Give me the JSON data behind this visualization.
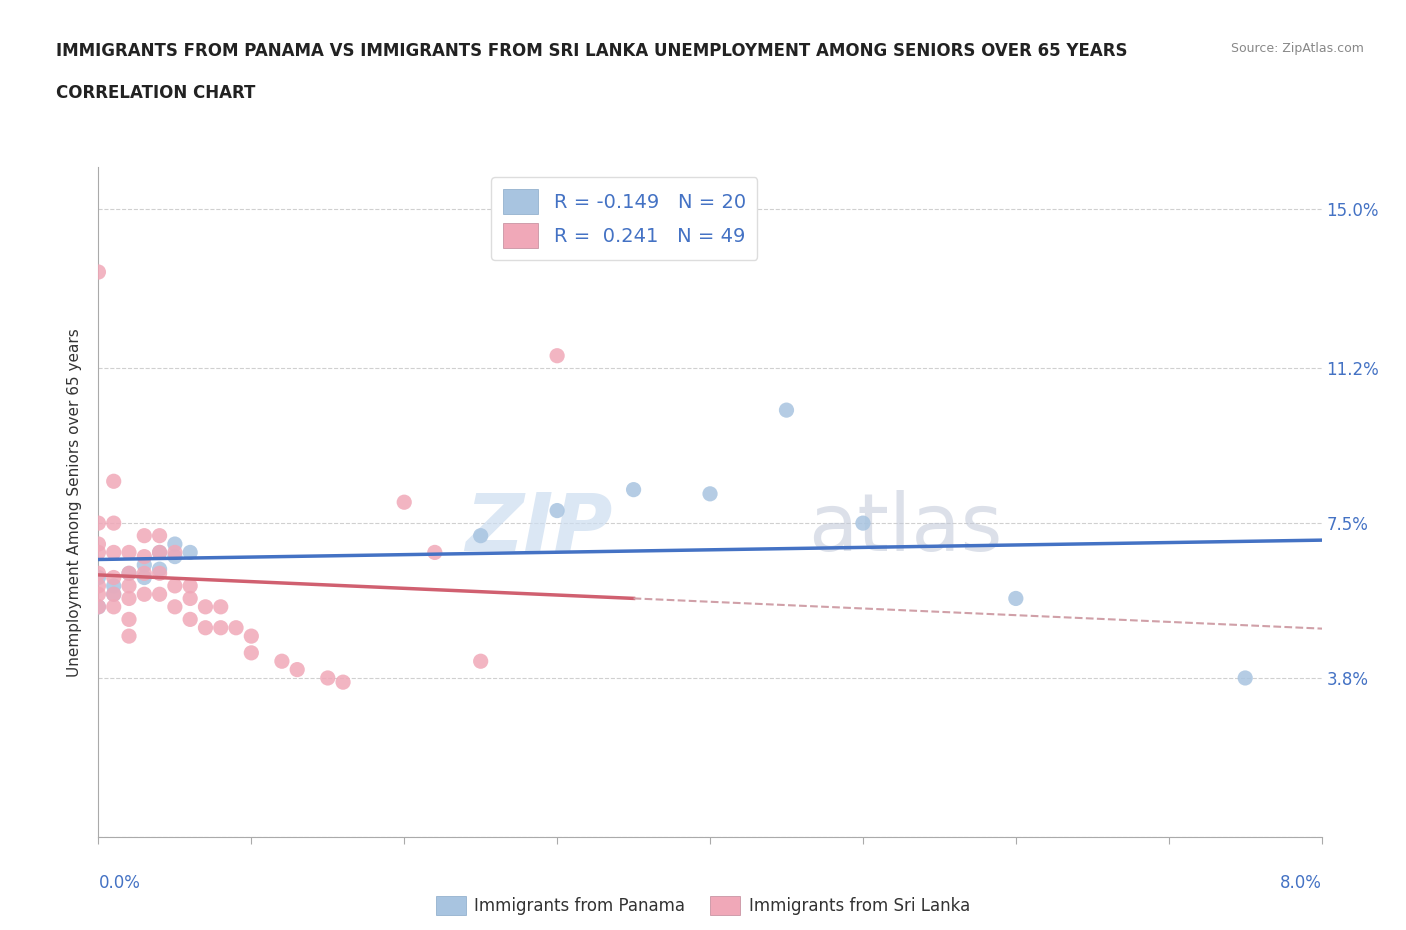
{
  "title_line1": "IMMIGRANTS FROM PANAMA VS IMMIGRANTS FROM SRI LANKA UNEMPLOYMENT AMONG SENIORS OVER 65 YEARS",
  "title_line2": "CORRELATION CHART",
  "source": "Source: ZipAtlas.com",
  "watermark_zip": "ZIP",
  "watermark_atlas": "atlas",
  "ylabel": "Unemployment Among Seniors over 65 years",
  "xlim": [
    0.0,
    0.08
  ],
  "ylim": [
    0.0,
    0.16
  ],
  "ytick_vals": [
    0.0,
    0.038,
    0.075,
    0.112,
    0.15
  ],
  "ytick_labels": [
    "",
    "3.8%",
    "7.5%",
    "11.2%",
    "15.0%"
  ],
  "xtick_vals": [
    0.0,
    0.01,
    0.02,
    0.03,
    0.04,
    0.05,
    0.06,
    0.07,
    0.08
  ],
  "xtick_show": {
    "0.0": "0.0%",
    "0.08": "8.0%"
  },
  "panama_color": "#a8c4e0",
  "sri_lanka_color": "#f0a8b8",
  "panama_line_color": "#4472c4",
  "sri_lanka_line_color": "#d06070",
  "sri_lanka_dashed_color": "#d0a0a8",
  "panama_R": -0.149,
  "panama_N": 20,
  "sri_lanka_R": 0.241,
  "sri_lanka_N": 49,
  "legend_label_panama": "Immigrants from Panama",
  "legend_label_sri_lanka": "Immigrants from Sri Lanka",
  "panama_scatter": [
    [
      0.0,
      0.062
    ],
    [
      0.0,
      0.055
    ],
    [
      0.001,
      0.058
    ],
    [
      0.001,
      0.06
    ],
    [
      0.002,
      0.063
    ],
    [
      0.003,
      0.065
    ],
    [
      0.003,
      0.062
    ],
    [
      0.004,
      0.068
    ],
    [
      0.004,
      0.064
    ],
    [
      0.005,
      0.067
    ],
    [
      0.005,
      0.07
    ],
    [
      0.006,
      0.068
    ],
    [
      0.025,
      0.072
    ],
    [
      0.03,
      0.078
    ],
    [
      0.035,
      0.083
    ],
    [
      0.04,
      0.082
    ],
    [
      0.045,
      0.102
    ],
    [
      0.05,
      0.075
    ],
    [
      0.06,
      0.057
    ],
    [
      0.075,
      0.038
    ]
  ],
  "sri_lanka_scatter": [
    [
      0.0,
      0.135
    ],
    [
      0.0,
      0.075
    ],
    [
      0.0,
      0.07
    ],
    [
      0.0,
      0.068
    ],
    [
      0.0,
      0.063
    ],
    [
      0.0,
      0.06
    ],
    [
      0.0,
      0.058
    ],
    [
      0.0,
      0.055
    ],
    [
      0.001,
      0.085
    ],
    [
      0.001,
      0.075
    ],
    [
      0.001,
      0.068
    ],
    [
      0.001,
      0.062
    ],
    [
      0.001,
      0.058
    ],
    [
      0.001,
      0.055
    ],
    [
      0.002,
      0.068
    ],
    [
      0.002,
      0.063
    ],
    [
      0.002,
      0.06
    ],
    [
      0.002,
      0.057
    ],
    [
      0.002,
      0.052
    ],
    [
      0.002,
      0.048
    ],
    [
      0.003,
      0.072
    ],
    [
      0.003,
      0.067
    ],
    [
      0.003,
      0.063
    ],
    [
      0.003,
      0.058
    ],
    [
      0.004,
      0.072
    ],
    [
      0.004,
      0.068
    ],
    [
      0.004,
      0.063
    ],
    [
      0.004,
      0.058
    ],
    [
      0.005,
      0.068
    ],
    [
      0.005,
      0.06
    ],
    [
      0.005,
      0.055
    ],
    [
      0.006,
      0.06
    ],
    [
      0.006,
      0.057
    ],
    [
      0.006,
      0.052
    ],
    [
      0.007,
      0.055
    ],
    [
      0.007,
      0.05
    ],
    [
      0.008,
      0.055
    ],
    [
      0.008,
      0.05
    ],
    [
      0.009,
      0.05
    ],
    [
      0.01,
      0.048
    ],
    [
      0.01,
      0.044
    ],
    [
      0.012,
      0.042
    ],
    [
      0.013,
      0.04
    ],
    [
      0.015,
      0.038
    ],
    [
      0.016,
      0.037
    ],
    [
      0.02,
      0.08
    ],
    [
      0.022,
      0.068
    ],
    [
      0.025,
      0.042
    ],
    [
      0.03,
      0.115
    ]
  ],
  "grid_color": "#d0d0d0",
  "grid_style": "--",
  "background_color": "#ffffff",
  "title_fontsize": 12,
  "axis_label_fontsize": 11,
  "tick_fontsize": 12,
  "tick_color": "#4472c4",
  "legend_R_color": "#4472c4",
  "scatter_size": 120
}
